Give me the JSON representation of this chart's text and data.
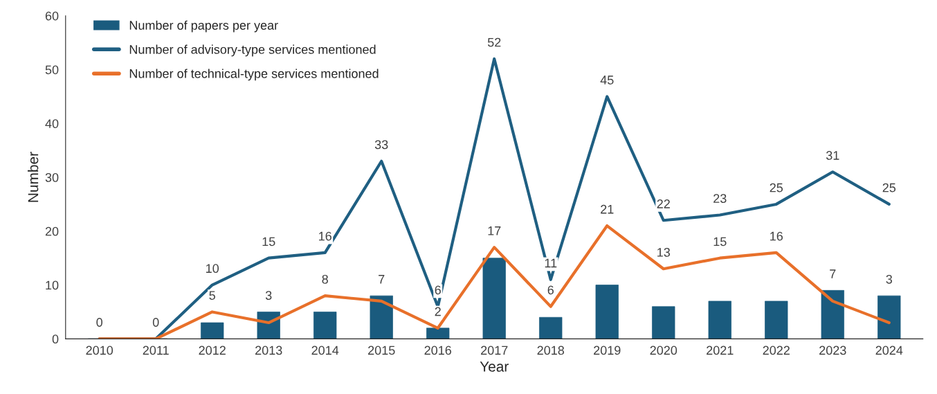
{
  "chart_data": {
    "type": "bar",
    "xlabel": "Year",
    "ylabel": "Number",
    "categories": [
      "2010",
      "2011",
      "2012",
      "2013",
      "2014",
      "2015",
      "2016",
      "2017",
      "2018",
      "2019",
      "2020",
      "2021",
      "2022",
      "2023",
      "2024"
    ],
    "ylim": [
      0,
      60
    ],
    "yticks": [
      0,
      10,
      20,
      30,
      40,
      50,
      60
    ],
    "grid": false,
    "legend": "top left",
    "series": [
      {
        "name": "Number of papers per year",
        "type": "bar",
        "color": "#1a5b7e",
        "values": [
          0,
          0,
          3,
          5,
          5,
          8,
          2,
          15,
          4,
          10,
          6,
          7,
          7,
          9,
          8
        ]
      },
      {
        "name": "Number of advisory-type services mentioned",
        "type": "line",
        "color": "#1f5f82",
        "values": [
          0,
          0,
          10,
          15,
          16,
          33,
          6,
          52,
          11,
          45,
          22,
          23,
          25,
          31,
          25
        ],
        "value_labels": [
          "0",
          null,
          "10",
          "15",
          "16",
          "33",
          "6",
          "52",
          "11",
          "45",
          "22",
          "23",
          "25",
          "31",
          "25"
        ]
      },
      {
        "name": "Number of technical-type services mentioned",
        "type": "line",
        "color": "#e8702a",
        "values": [
          0,
          0,
          5,
          3,
          8,
          7,
          2,
          17,
          6,
          21,
          13,
          15,
          16,
          7,
          3
        ],
        "value_labels": [
          null,
          "0",
          "5",
          "3",
          "8",
          "7",
          "2",
          "17",
          "6",
          "21",
          "13",
          "15",
          "16",
          "7",
          "3"
        ]
      }
    ]
  }
}
